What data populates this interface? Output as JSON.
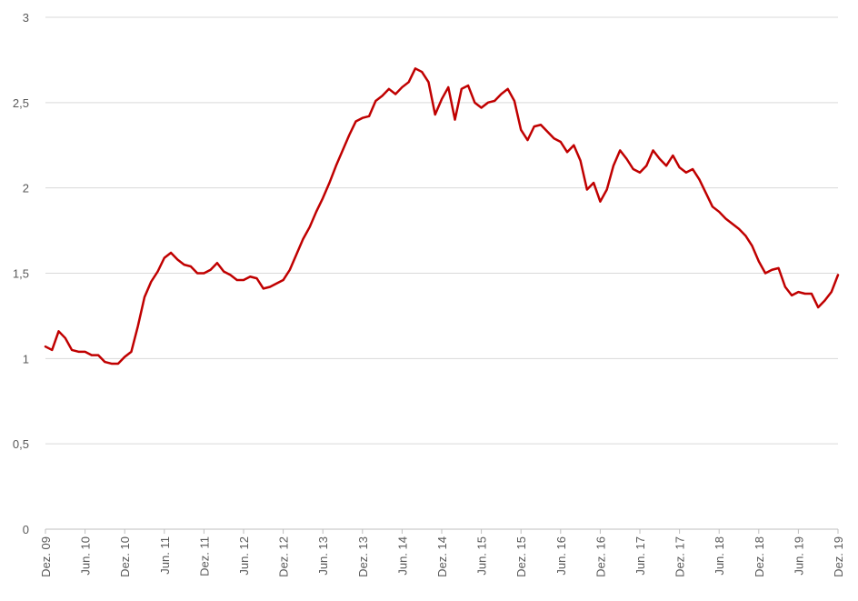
{
  "chart_data": {
    "type": "line",
    "title": "",
    "xlabel": "",
    "ylabel": "",
    "ylim": [
      0,
      3
    ],
    "yticks": [
      0,
      0.5,
      1,
      1.5,
      2,
      2.5,
      3
    ],
    "ytick_labels": [
      "0",
      "0,5",
      "1",
      "1,5",
      "2",
      "2,5",
      "3"
    ],
    "xtick_labels": [
      "Dez. 09",
      "Jun. 10",
      "Dez. 10",
      "Jun. 11",
      "Dez. 11",
      "Jun. 12",
      "Dez. 12",
      "Jun. 13",
      "Dez. 13",
      "Jun. 14",
      "Dez. 14",
      "Jun. 15",
      "Dez. 15",
      "Jun. 16",
      "Dez. 16",
      "Jun. 17",
      "Dez. 17",
      "Jun. 18",
      "Dez. 18",
      "Jun. 19",
      "Dez. 19"
    ],
    "grid": true,
    "legend": "none",
    "line_color": "#C00000",
    "grid_color": "#D9D9D9",
    "axis_color": "#BFBFBF",
    "series": [
      {
        "values": [
          1.07,
          1.05,
          1.16,
          1.12,
          1.05,
          1.04,
          1.04,
          1.02,
          1.02,
          0.98,
          0.97,
          0.97,
          1.01,
          1.04,
          1.19,
          1.36,
          1.45,
          1.51,
          1.59,
          1.62,
          1.58,
          1.55,
          1.54,
          1.5,
          1.5,
          1.52,
          1.56,
          1.51,
          1.49,
          1.46,
          1.46,
          1.48,
          1.47,
          1.41,
          1.42,
          1.44,
          1.46,
          1.52,
          1.61,
          1.7,
          1.77,
          1.86,
          1.94,
          2.03,
          2.13,
          2.22,
          2.31,
          2.39,
          2.41,
          2.42,
          2.51,
          2.54,
          2.58,
          2.55,
          2.59,
          2.62,
          2.7,
          2.68,
          2.62,
          2.43,
          2.52,
          2.59,
          2.4,
          2.58,
          2.6,
          2.5,
          2.47,
          2.5,
          2.51,
          2.55,
          2.58,
          2.51,
          2.34,
          2.28,
          2.36,
          2.37,
          2.33,
          2.29,
          2.27,
          2.21,
          2.25,
          2.16,
          1.99,
          2.03,
          1.92,
          1.99,
          2.13,
          2.22,
          2.17,
          2.11,
          2.09,
          2.13,
          2.22,
          2.17,
          2.13,
          2.19,
          2.12,
          2.09,
          2.11,
          2.05,
          1.97,
          1.89,
          1.86,
          1.82,
          1.79,
          1.76,
          1.72,
          1.66,
          1.57,
          1.5,
          1.52,
          1.53,
          1.42,
          1.37,
          1.39,
          1.38,
          1.38,
          1.3,
          1.34,
          1.39,
          1.49
        ]
      }
    ]
  }
}
